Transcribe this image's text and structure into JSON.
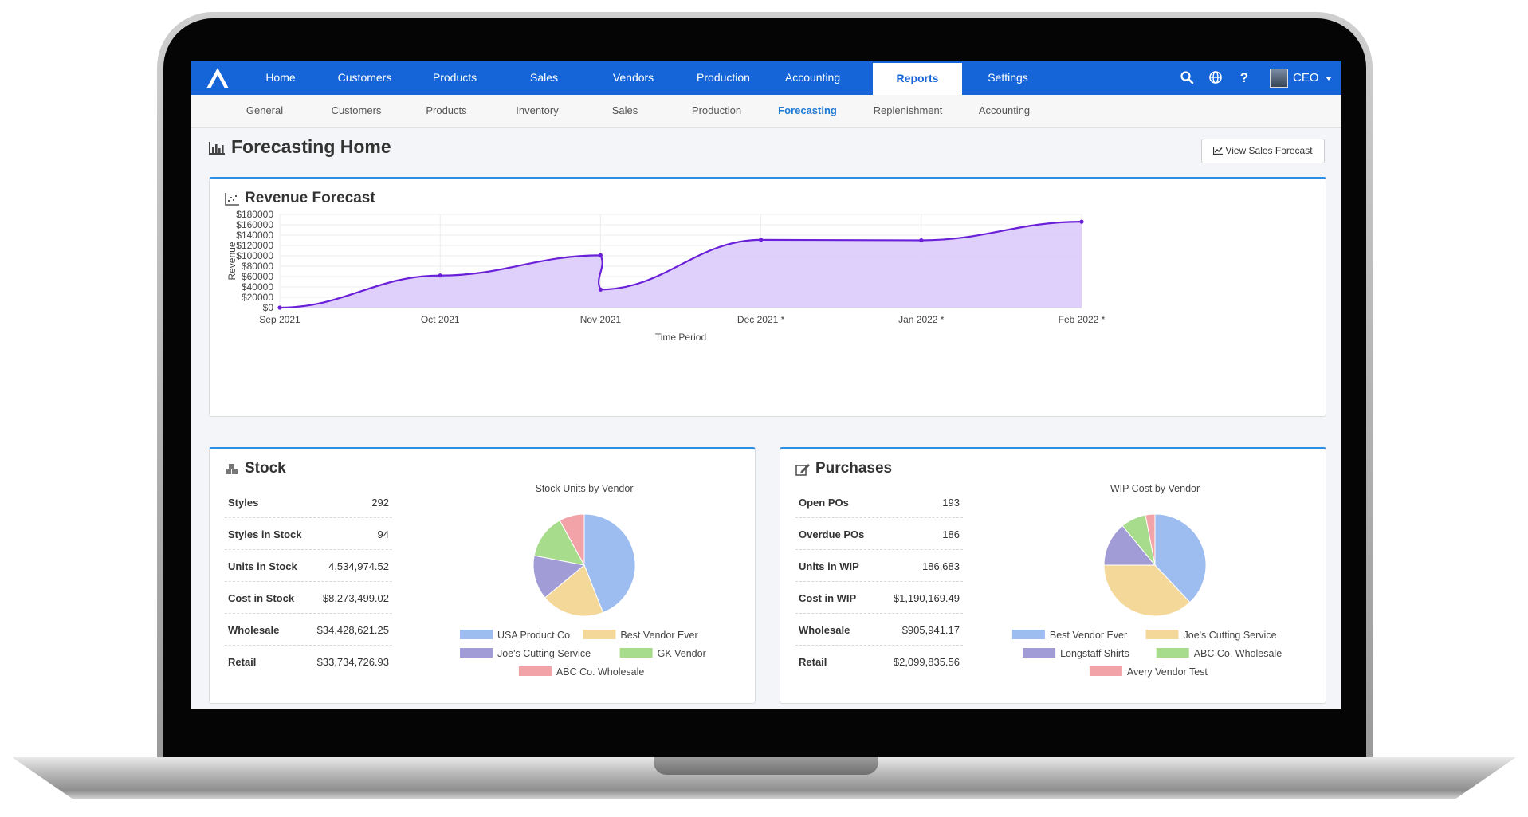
{
  "nav": {
    "items": [
      "Home",
      "Customers",
      "Products",
      "Sales",
      "Vendors",
      "Production",
      "Accounting",
      "Reports",
      "Settings"
    ],
    "active": "Reports",
    "user_label": "CEO"
  },
  "subnav": {
    "items": [
      "General",
      "Customers",
      "Products",
      "Inventory",
      "Sales",
      "Production",
      "Forecasting",
      "Replenishment",
      "Accounting"
    ],
    "active": "Forecasting"
  },
  "page": {
    "title": "Forecasting Home",
    "view_button": "View Sales Forecast"
  },
  "revenue": {
    "title": "Revenue Forecast"
  },
  "stock": {
    "title": "Stock",
    "rows": [
      {
        "label": "Styles",
        "value": "292"
      },
      {
        "label": "Styles in Stock",
        "value": "94"
      },
      {
        "label": "Units in Stock",
        "value": "4,534,974.52"
      },
      {
        "label": "Cost in Stock",
        "value": "$8,273,499.02"
      },
      {
        "label": "Wholesale",
        "value": "$34,428,621.25"
      },
      {
        "label": "Retail",
        "value": "$33,734,726.93"
      }
    ]
  },
  "purchases": {
    "title": "Purchases",
    "rows": [
      {
        "label": "Open POs",
        "value": "193"
      },
      {
        "label": "Overdue POs",
        "value": "186"
      },
      {
        "label": "Units in WIP",
        "value": "186,683"
      },
      {
        "label": "Cost in WIP",
        "value": "$1,190,169.49"
      },
      {
        "label": "Wholesale",
        "value": "$905,941.17"
      },
      {
        "label": "Retail",
        "value": "$2,099,835.56"
      }
    ]
  },
  "colors": {
    "nav_blue": "#1565d8",
    "accent": "#1e7ad6",
    "line": "#6a1fd8",
    "area": "#dccbfb",
    "pie_blue": "#9dbcf0",
    "pie_yellow": "#f4d89a",
    "pie_purple": "#a19bd6",
    "pie_green": "#a7dc8c",
    "pie_red": "#f2a3a8"
  },
  "chart_data": [
    {
      "type": "area",
      "title": "Revenue Forecast",
      "xlabel": "Time Period",
      "ylabel": "Revenue",
      "ylim": [
        0,
        180000
      ],
      "y_ticks": [
        "$0",
        "$20000",
        "$40000",
        "$60000",
        "$80000",
        "$100000",
        "$120000",
        "$140000",
        "$160000",
        "$180000"
      ],
      "grid": true,
      "categories": [
        "Sep 2021",
        "Oct 2021",
        "Nov 2021",
        "Dec 2021 *",
        "Jan 2022 *",
        "Feb 2022 *"
      ],
      "points": [
        {
          "x": "Sep 2021",
          "y": 0
        },
        {
          "x": "Oct 2021",
          "y": 62000
        },
        {
          "x": "Nov 2021",
          "y": 101000
        },
        {
          "x": "Nov 2021",
          "y": 35000
        },
        {
          "x": "Dec 2021 *",
          "y": 131000
        },
        {
          "x": "Jan 2022 *",
          "y": 130000
        },
        {
          "x": "Feb 2022 *",
          "y": 166000
        }
      ]
    },
    {
      "type": "pie",
      "title": "Stock Units by Vendor",
      "legend": "bottom",
      "slices": [
        {
          "label": "USA Product Co",
          "value": 44,
          "color": "#9dbcf0"
        },
        {
          "label": "Best Vendor Ever",
          "value": 20,
          "color": "#f4d89a"
        },
        {
          "label": "Joe's Cutting Service",
          "value": 14,
          "color": "#a19bd6"
        },
        {
          "label": "GK Vendor",
          "value": 14,
          "color": "#a7dc8c"
        },
        {
          "label": "ABC Co. Wholesale",
          "value": 8,
          "color": "#f2a3a8"
        }
      ]
    },
    {
      "type": "pie",
      "title": "WIP Cost by Vendor",
      "legend": "bottom",
      "slices": [
        {
          "label": "Best Vendor Ever",
          "value": 38,
          "color": "#9dbcf0"
        },
        {
          "label": "Joe's Cutting Service",
          "value": 37,
          "color": "#f4d89a"
        },
        {
          "label": "Longstaff Shirts",
          "value": 14,
          "color": "#a19bd6"
        },
        {
          "label": "ABC Co. Wholesale",
          "value": 8,
          "color": "#a7dc8c"
        },
        {
          "label": "Avery Vendor Test",
          "value": 3,
          "color": "#f2a3a8"
        }
      ]
    }
  ]
}
